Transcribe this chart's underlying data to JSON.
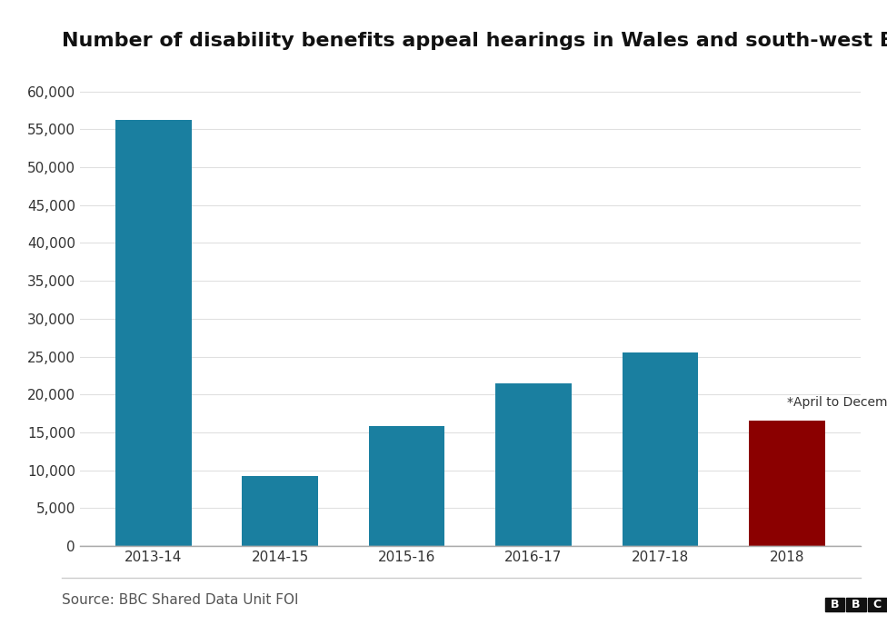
{
  "title": "Number of disability benefits appeal hearings in Wales and south-west England",
  "categories": [
    "2013-14",
    "2014-15",
    "2015-16",
    "2016-17",
    "2017-18",
    "2018"
  ],
  "values": [
    56200,
    9200,
    15800,
    21500,
    25500,
    16500
  ],
  "bar_colors": [
    "#1a7fa0",
    "#1a7fa0",
    "#1a7fa0",
    "#1a7fa0",
    "#1a7fa0",
    "#8b0000"
  ],
  "ylim": [
    0,
    62000
  ],
  "yticks": [
    0,
    5000,
    10000,
    15000,
    20000,
    25000,
    30000,
    35000,
    40000,
    45000,
    50000,
    55000,
    60000
  ],
  "annotation_text": "*April to December",
  "source_text": "Source: BBC Shared Data Unit FOI",
  "bbc_text": "BBC",
  "background_color": "#ffffff",
  "title_fontsize": 16,
  "axis_fontsize": 11,
  "source_fontsize": 11
}
